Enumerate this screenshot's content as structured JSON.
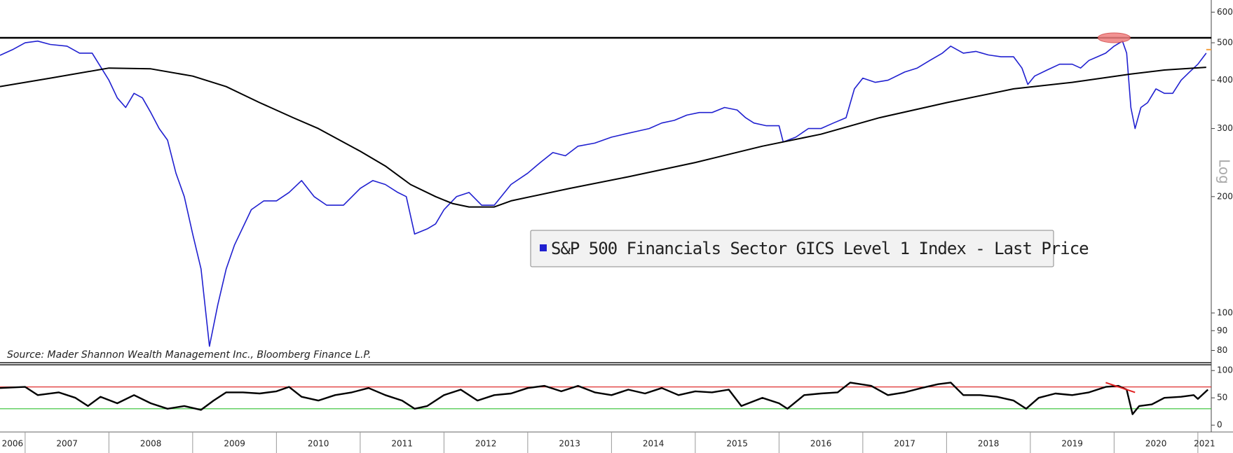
{
  "chart_data": [
    {
      "type": "line",
      "yscale": "log",
      "y_label": "Log",
      "source": "Source: Mader Shannon Wealth Management Inc., Bloomberg Finance L.P.",
      "xlim": [
        2006.7,
        2021.16
      ],
      "ylim": [
        75,
        645
      ],
      "yticks": [
        80,
        90,
        100,
        200,
        300,
        400,
        500,
        600
      ],
      "hlines": [
        {
          "value": 515,
          "color": "#000000"
        }
      ],
      "segments": [
        {
          "x": [
            2021.1,
            2021.16
          ],
          "y": [
            480,
            480
          ],
          "color": "#f5a040"
        }
      ],
      "highlight": {
        "x": 2020.0,
        "y": 515,
        "color": "#f08080"
      },
      "series": [
        {
          "name": "S&P 500 Financials Sector GICS Level 1 Index - Last Price",
          "color": "#2020d0",
          "x": [
            2006.7,
            2006.85,
            2007.0,
            2007.15,
            2007.3,
            2007.5,
            2007.65,
            2007.8,
            2008.0,
            2008.1,
            2008.2,
            2008.3,
            2008.4,
            2008.5,
            2008.6,
            2008.7,
            2008.8,
            2008.9,
            2009.0,
            2009.1,
            2009.2,
            2009.3,
            2009.4,
            2009.5,
            2009.7,
            2009.85,
            2010.0,
            2010.15,
            2010.3,
            2010.45,
            2010.6,
            2010.8,
            2011.0,
            2011.15,
            2011.3,
            2011.45,
            2011.55,
            2011.65,
            2011.8,
            2011.9,
            2012.0,
            2012.15,
            2012.3,
            2012.45,
            2012.6,
            2012.8,
            2013.0,
            2013.15,
            2013.3,
            2013.45,
            2013.6,
            2013.8,
            2014.0,
            2014.15,
            2014.3,
            2014.45,
            2014.6,
            2014.75,
            2014.9,
            2015.05,
            2015.2,
            2015.35,
            2015.5,
            2015.6,
            2015.7,
            2015.85,
            2016.0,
            2016.05,
            2016.2,
            2016.35,
            2016.5,
            2016.65,
            2016.8,
            2016.9,
            2017.0,
            2017.15,
            2017.3,
            2017.5,
            2017.65,
            2017.8,
            2017.95,
            2018.05,
            2018.2,
            2018.35,
            2018.5,
            2018.65,
            2018.8,
            2018.9,
            2018.97,
            2019.05,
            2019.2,
            2019.35,
            2019.5,
            2019.6,
            2019.7,
            2019.8,
            2019.9,
            2020.0,
            2020.1,
            2020.15,
            2020.2,
            2020.25,
            2020.32,
            2020.4,
            2020.5,
            2020.6,
            2020.7,
            2020.8,
            2020.9,
            2021.0,
            2021.1
          ],
          "values": [
            464,
            480,
            500,
            505,
            495,
            490,
            470,
            470,
            400,
            360,
            340,
            370,
            360,
            330,
            300,
            280,
            230,
            200,
            160,
            130,
            82,
            105,
            130,
            150,
            185,
            195,
            195,
            205,
            220,
            200,
            190,
            190,
            210,
            220,
            215,
            205,
            200,
            160,
            165,
            170,
            185,
            200,
            205,
            190,
            190,
            215,
            230,
            245,
            260,
            255,
            270,
            275,
            285,
            290,
            295,
            300,
            310,
            315,
            325,
            330,
            330,
            340,
            335,
            320,
            310,
            305,
            305,
            277,
            285,
            300,
            300,
            310,
            320,
            380,
            405,
            395,
            400,
            420,
            430,
            450,
            470,
            490,
            470,
            475,
            465,
            460,
            460,
            430,
            390,
            410,
            425,
            440,
            440,
            430,
            450,
            460,
            470,
            490,
            505,
            470,
            340,
            300,
            340,
            350,
            380,
            370,
            370,
            400,
            420,
            440,
            470
          ]
        },
        {
          "color": "#000000",
          "x": [
            2006.7,
            2007.3,
            2008.0,
            2008.5,
            2009.0,
            2009.4,
            2009.8,
            2010.2,
            2010.5,
            2011.0,
            2011.3,
            2011.6,
            2011.9,
            2012.1,
            2012.3,
            2012.6,
            2012.8,
            2013.5,
            2014.2,
            2015.0,
            2015.8,
            2016.5,
            2017.2,
            2018.0,
            2018.8,
            2019.5,
            2020.2,
            2020.6,
            2021.1
          ],
          "values": [
            385,
            405,
            430,
            428,
            410,
            385,
            350,
            320,
            300,
            262,
            240,
            215,
            200,
            192,
            188,
            188,
            195,
            210,
            225,
            245,
            270,
            290,
            320,
            350,
            380,
            395,
            415,
            425,
            432
          ]
        }
      ]
    },
    {
      "type": "line",
      "xlim": [
        2006.7,
        2021.16
      ],
      "ylim": [
        -10,
        108
      ],
      "yticks": [
        0,
        50,
        100
      ],
      "xticks": [
        2006,
        2007,
        2008,
        2009,
        2010,
        2011,
        2012,
        2013,
        2014,
        2015,
        2016,
        2017,
        2018,
        2019,
        2020,
        2021
      ],
      "hlines": [
        {
          "value": 70,
          "color": "#e03030"
        },
        {
          "value": 30,
          "color": "#30c030"
        }
      ],
      "segments": [
        {
          "x": [
            2019.9,
            2020.25
          ],
          "y": [
            78,
            60
          ],
          "color": "#e02020"
        }
      ],
      "series": [
        {
          "color": "#000000",
          "x": [
            2006.7,
            2007.0,
            2007.15,
            2007.4,
            2007.6,
            2007.75,
            2007.9,
            2008.1,
            2008.3,
            2008.5,
            2008.7,
            2008.9,
            2009.1,
            2009.25,
            2009.4,
            2009.6,
            2009.8,
            2010.0,
            2010.15,
            2010.3,
            2010.5,
            2010.7,
            2010.9,
            2011.1,
            2011.3,
            2011.5,
            2011.65,
            2011.8,
            2012.0,
            2012.2,
            2012.4,
            2012.6,
            2012.8,
            2013.0,
            2013.2,
            2013.4,
            2013.6,
            2013.8,
            2014.0,
            2014.2,
            2014.4,
            2014.6,
            2014.8,
            2015.0,
            2015.2,
            2015.4,
            2015.55,
            2015.8,
            2016.0,
            2016.1,
            2016.3,
            2016.5,
            2016.7,
            2016.85,
            2017.1,
            2017.3,
            2017.5,
            2017.7,
            2017.9,
            2018.05,
            2018.2,
            2018.4,
            2018.6,
            2018.8,
            2018.95,
            2019.1,
            2019.3,
            2019.5,
            2019.7,
            2019.9,
            2020.05,
            2020.15,
            2020.22,
            2020.3,
            2020.45,
            2020.6,
            2020.8,
            2020.95,
            2021.0,
            2021.12
          ],
          "values": [
            68,
            70,
            55,
            60,
            50,
            35,
            52,
            40,
            55,
            40,
            30,
            35,
            28,
            45,
            60,
            60,
            58,
            62,
            70,
            52,
            45,
            55,
            60,
            68,
            55,
            45,
            30,
            35,
            55,
            65,
            45,
            55,
            58,
            68,
            72,
            62,
            72,
            60,
            55,
            65,
            58,
            68,
            55,
            62,
            60,
            65,
            35,
            50,
            40,
            30,
            55,
            58,
            60,
            78,
            72,
            55,
            60,
            68,
            75,
            78,
            55,
            55,
            52,
            45,
            30,
            50,
            58,
            55,
            60,
            70,
            72,
            65,
            20,
            35,
            38,
            50,
            52,
            55,
            48,
            65
          ]
        }
      ]
    }
  ]
}
